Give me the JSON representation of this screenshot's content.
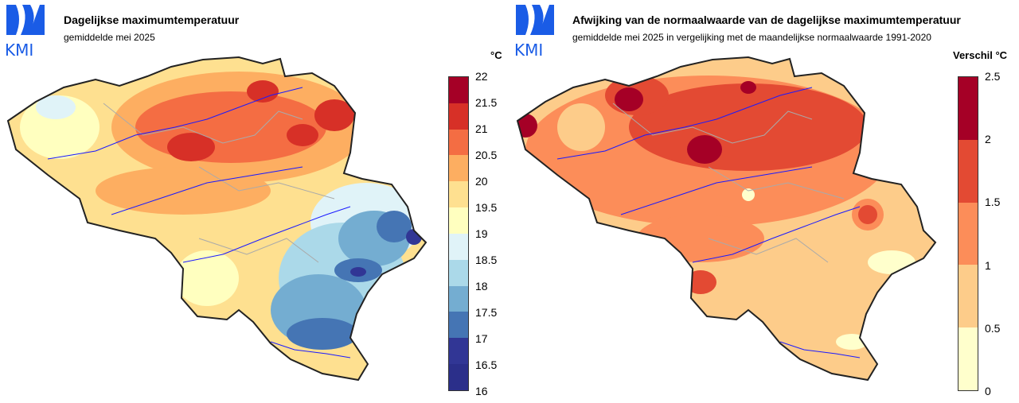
{
  "left_map": {
    "logo_text": "KMI",
    "title": "Dagelijkse maximumtemperatuur",
    "subtitle": "gemiddelde mei 2025",
    "unit": "°C",
    "legend": {
      "ticks": [
        "22",
        "21.5",
        "21",
        "20.5",
        "20",
        "19.5",
        "19",
        "18.5",
        "18",
        "17.5",
        "17",
        "16.5",
        "16"
      ],
      "colors": [
        "#a50026",
        "#d73027",
        "#f46d43",
        "#fdae61",
        "#fee090",
        "#ffffbf",
        "#e0f3f8",
        "#abd9e9",
        "#74add1",
        "#4575b4",
        "#313695",
        "#2b2f8a"
      ]
    }
  },
  "right_map": {
    "logo_text": "KMI",
    "title": "Afwijking van de normaalwaarde van de dagelijkse maximumtemperatuur",
    "subtitle": "gemiddelde mei 2025 in vergelijking met de maandelijkse normaalwaarde 1991-2020",
    "unit": "Verschil °C",
    "legend": {
      "ticks": [
        "2.5",
        "2",
        "1.5",
        "1",
        "0.5",
        "0"
      ],
      "colors": [
        "#a50026",
        "#e34a33",
        "#fc8d59",
        "#fdcc8a",
        "#ffffcc"
      ]
    }
  }
}
